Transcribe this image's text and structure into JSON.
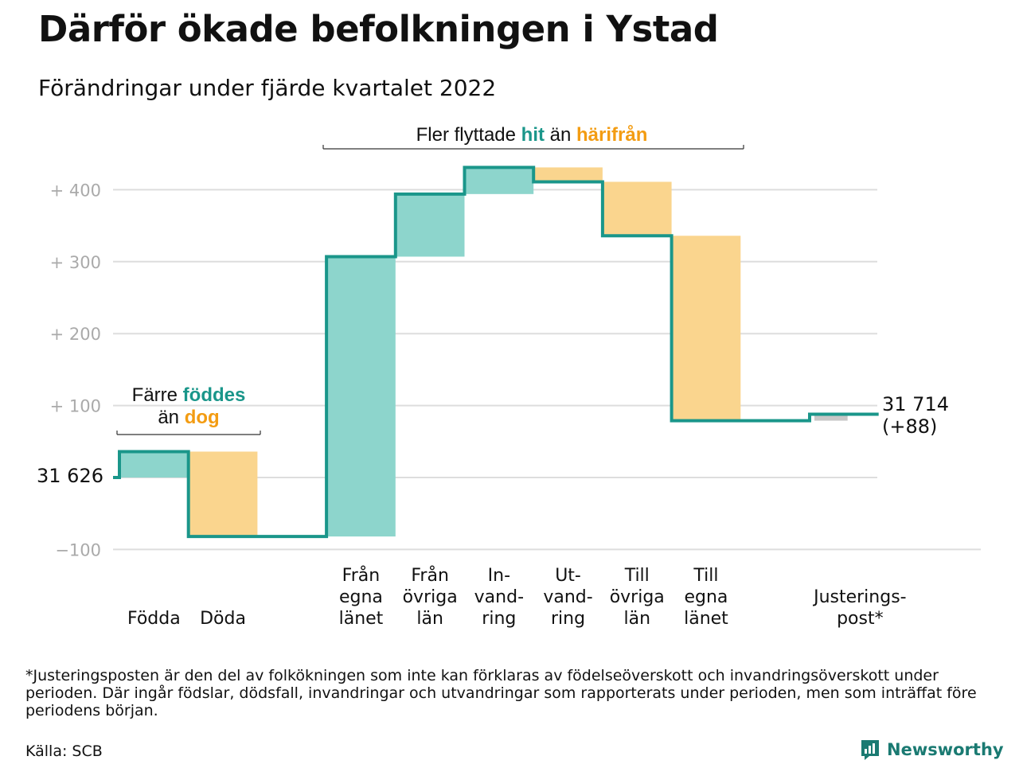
{
  "title": "Därför ökade befolkningen i Ystad",
  "subtitle": "Förändringar under fjärde kvartalet 2022",
  "colors": {
    "increase": "#8dd5cc",
    "decrease": "#fad58e",
    "line": "#1a968a",
    "hit": "#1a968a",
    "harifran": "#f39c12",
    "adjust": "#c7c7c7",
    "grid": "#dddddd",
    "tick": "#aaaaaa"
  },
  "annotations": {
    "left": {
      "line1_prefix": "Färre ",
      "line1_emph": "föddes",
      "line2_prefix": "än ",
      "line2_emph": "dog"
    },
    "top": {
      "prefix": "Fler flyttade ",
      "emph1": "hit",
      "middle": " än ",
      "emph2": "härifrån"
    }
  },
  "chart_data": {
    "type": "waterfall",
    "start_label": "31 626",
    "end_label_line1": "31 714",
    "end_label_line2": "(+88)",
    "y_ticks": [
      {
        "value": 400,
        "label": "+ 400"
      },
      {
        "value": 300,
        "label": "+ 300"
      },
      {
        "value": 200,
        "label": "+ 200"
      },
      {
        "value": 100,
        "label": "+ 100"
      },
      {
        "value": -100,
        "label": "−100"
      }
    ],
    "ylim": [
      -100,
      430
    ],
    "start_value": 0,
    "end_value": 88,
    "steps": [
      {
        "label": [
          "Födda"
        ],
        "delta": 36,
        "kind": "increase"
      },
      {
        "label": [
          "Döda"
        ],
        "delta": -118,
        "kind": "decrease"
      },
      {
        "label": [],
        "delta": 0,
        "kind": "gap"
      },
      {
        "label": [
          "Från",
          "egna",
          "länet"
        ],
        "delta": 389,
        "kind": "increase"
      },
      {
        "label": [
          "Från",
          "övriga",
          "län"
        ],
        "delta": 87,
        "kind": "increase"
      },
      {
        "label": [
          "In-",
          "vand-",
          "ring"
        ],
        "delta": 37,
        "kind": "increase"
      },
      {
        "label": [
          "Ut-",
          "vand-",
          "ring"
        ],
        "delta": -20,
        "kind": "decrease"
      },
      {
        "label": [
          "Till",
          "övriga",
          "län"
        ],
        "delta": -75,
        "kind": "decrease"
      },
      {
        "label": [
          "Till",
          "egna",
          "länet"
        ],
        "delta": -257,
        "kind": "decrease"
      },
      {
        "label": [],
        "delta": 0,
        "kind": "gap"
      },
      {
        "label": [
          "Justerings-",
          "post*"
        ],
        "delta": 9,
        "kind": "adjust"
      }
    ]
  },
  "footnote": "*Justeringsposten är den del av folkökningen som inte kan förklaras av födelseöverskott och invandringsöverskott under perioden. Där ingår födslar, dödsfall, invandringar och utvandringar som rapporterats under perioden, men som inträffat före periodens början.",
  "source": "Källa: SCB",
  "brand": "Newsworthy"
}
